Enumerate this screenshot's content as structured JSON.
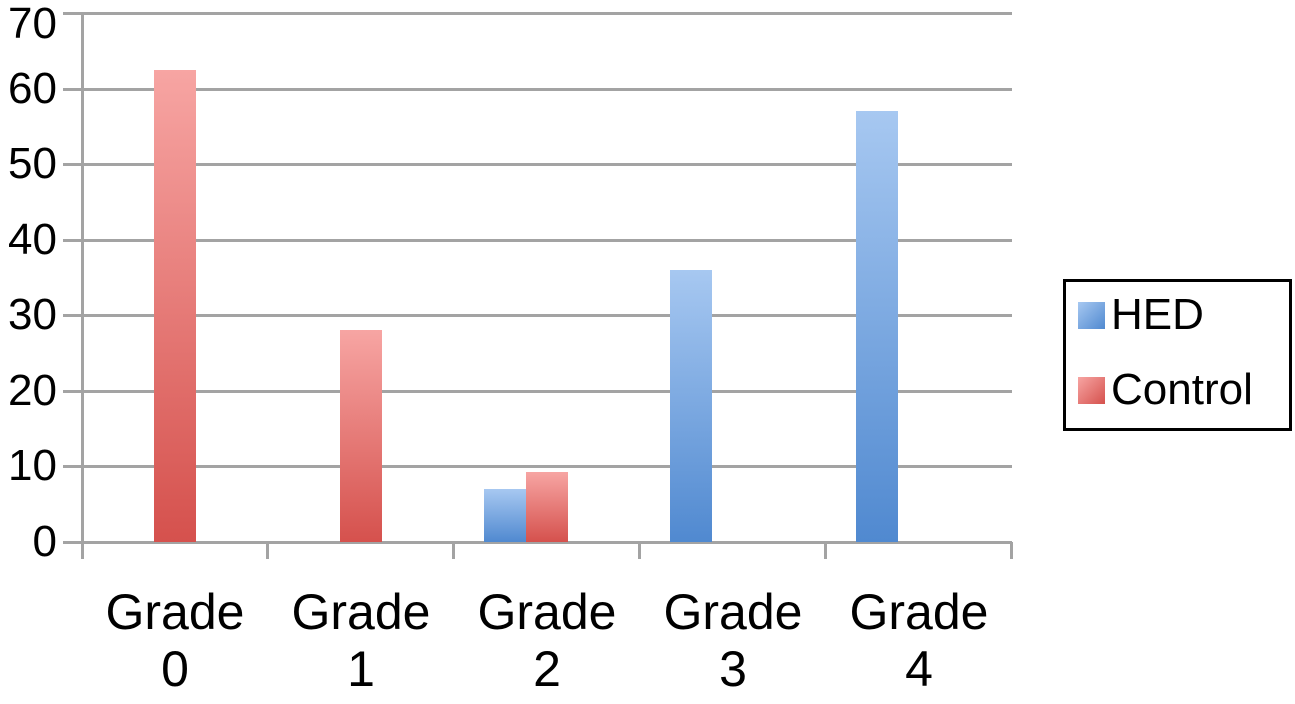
{
  "chart_data": {
    "type": "bar",
    "title": "",
    "xlabel": "",
    "ylabel": "",
    "categories": [
      "Grade 0",
      "Grade 1",
      "Grade 2",
      "Grade 3",
      "Grade 4"
    ],
    "series": [
      {
        "name": "HED",
        "values": [
          null,
          null,
          7,
          36,
          57
        ],
        "color_top": "#a7c8f1",
        "color_bottom": "#5089d0"
      },
      {
        "name": "Control",
        "values": [
          62.5,
          28,
          9.3,
          null,
          null
        ],
        "color_top": "#f7a5a3",
        "color_bottom": "#d5514d"
      }
    ],
    "ylim": [
      0,
      70
    ],
    "yticks": [
      0,
      10,
      20,
      30,
      40,
      50,
      60,
      70
    ],
    "grid": true,
    "legend_position": "right",
    "axis_color": "#a3a3a3",
    "text_color": "#000000"
  }
}
